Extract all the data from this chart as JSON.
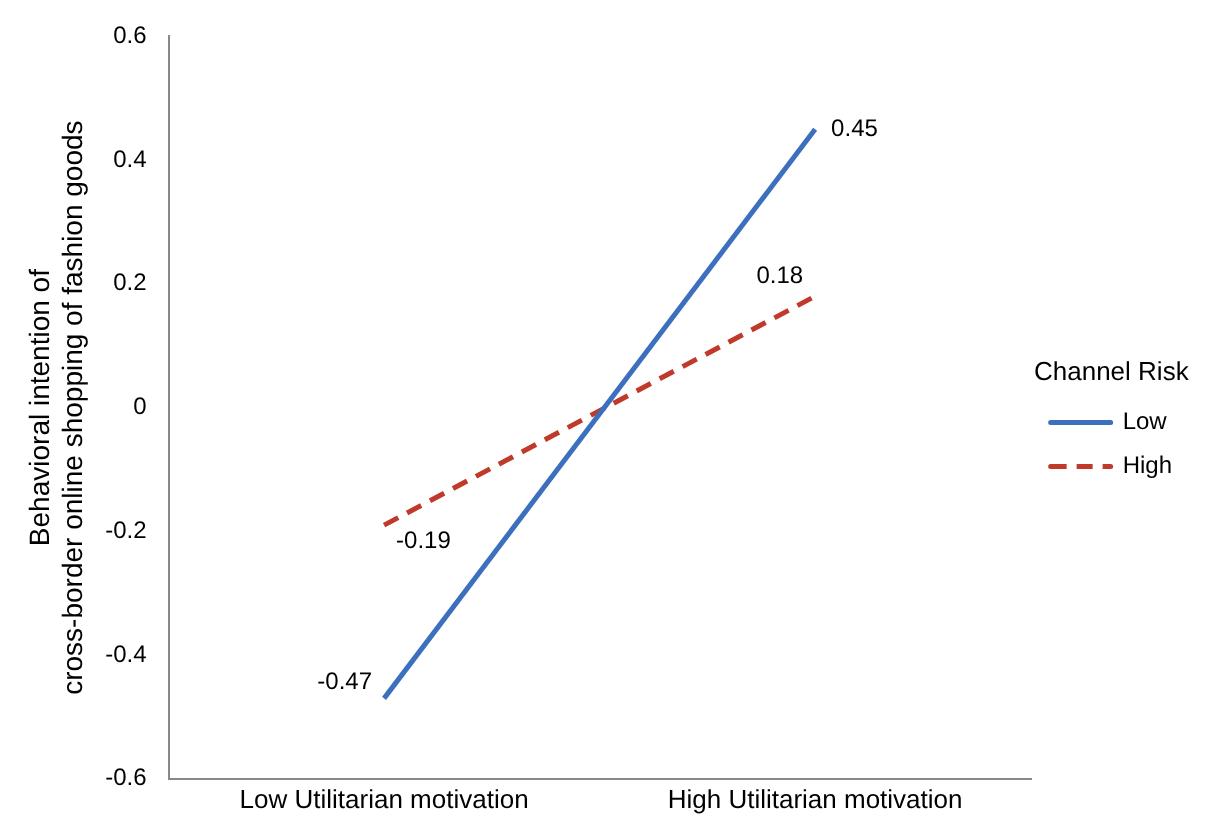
{
  "chart_data": {
    "type": "line",
    "ylabel": "Behavioral intention of\ncross-border online shopping of fashion goods",
    "legend_title": "Channel Risk",
    "categories": [
      "Low Utilitarian motivation",
      "High Utilitarian motivation"
    ],
    "series": [
      {
        "name": "Low",
        "color": "#3c6fbe",
        "values": [
          -0.47,
          0.45
        ],
        "line_style": "solid"
      },
      {
        "name": "High",
        "color": "#c0392b",
        "values": [
          -0.19,
          0.18
        ],
        "line_style": "dashed"
      }
    ],
    "ylim": [
      -0.6,
      0.6
    ],
    "yticks": [
      -0.6,
      -0.4,
      -0.2,
      0,
      0.2,
      0.4,
      0.6
    ],
    "grid": false,
    "legend": "right",
    "marker": "none",
    "data_labels": true
  }
}
